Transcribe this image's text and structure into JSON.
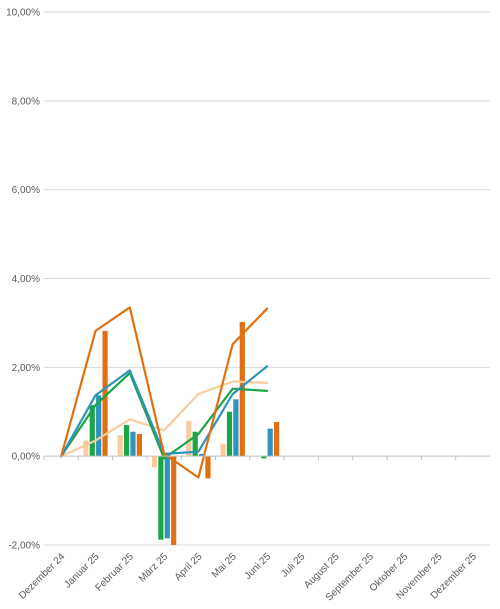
{
  "chart_data": {
    "type": "bar",
    "title": "",
    "xlabel": "",
    "ylabel": "",
    "ylim": [
      -2,
      10
    ],
    "yticks": [
      -2,
      0,
      2,
      4,
      6,
      8,
      10
    ],
    "y_tick_labels": [
      "-2,00%",
      "0,00%",
      "2,00%",
      "4,00%",
      "6,00%",
      "8,00%",
      "10,00%"
    ],
    "grid": true,
    "legend": "none",
    "categories": [
      "Dezember 24",
      "Januar 25",
      "Februar 25",
      "März 25",
      "April 25",
      "Mai 25",
      "Juni 25",
      "Juli 25",
      "August 25",
      "September 25",
      "Oktober 25",
      "November 25",
      "Dezember 25"
    ],
    "bar_series": [
      {
        "color": "#f8cba0",
        "values": [
          null,
          0.35,
          0.47,
          -0.25,
          0.8,
          0.28,
          null
        ]
      },
      {
        "color": "#1aa645",
        "values": [
          null,
          1.15,
          0.7,
          -1.88,
          0.55,
          1.0,
          -0.05
        ]
      },
      {
        "color": "#2f93b9",
        "values": [
          null,
          1.37,
          0.55,
          -1.85,
          0.05,
          1.28,
          0.62
        ]
      },
      {
        "color": "#e0700f",
        "values": [
          null,
          2.82,
          0.5,
          -2.0,
          -0.5,
          3.02,
          0.77
        ]
      }
    ],
    "line_series": [
      {
        "color": "#f8cba0",
        "values": [
          0,
          0.35,
          0.83,
          0.58,
          1.4,
          1.68,
          1.65
        ]
      },
      {
        "color": "#1aa645",
        "values": [
          0,
          1.15,
          1.87,
          -0.05,
          0.5,
          1.52,
          1.47
        ]
      },
      {
        "color": "#2f93b9",
        "values": [
          0,
          1.37,
          1.93,
          0.05,
          0.1,
          1.4,
          2.02
        ]
      },
      {
        "color": "#e0700f",
        "values": [
          0,
          2.82,
          3.35,
          0.05,
          -0.48,
          2.52,
          3.32
        ]
      }
    ]
  }
}
